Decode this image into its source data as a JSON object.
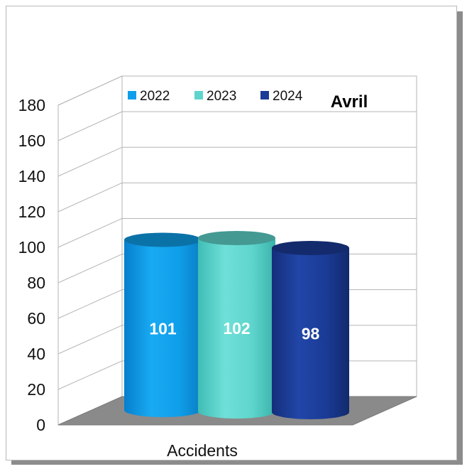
{
  "chart_data": {
    "type": "bar",
    "title": "Avril",
    "categories": [
      "Accidents"
    ],
    "series": [
      {
        "name": "2022",
        "values": [
          101
        ],
        "color": "#0f9fea"
      },
      {
        "name": "2023",
        "values": [
          102
        ],
        "color": "#5ed5cc"
      },
      {
        "name": "2024",
        "values": [
          98
        ],
        "color": "#1a3b96"
      }
    ],
    "ylim": [
      0,
      180
    ],
    "yticks": [
      0,
      20,
      40,
      60,
      80,
      100,
      120,
      140,
      160,
      180
    ],
    "xlabel": "",
    "ylabel": "",
    "grid": true,
    "legend": "top",
    "style": "3d-cylinder"
  }
}
